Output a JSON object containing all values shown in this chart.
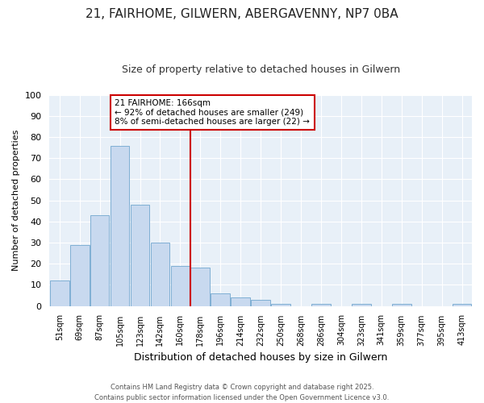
{
  "title_line1": "21, FAIRHOME, GILWERN, ABERGAVENNY, NP7 0BA",
  "title_line2": "Size of property relative to detached houses in Gilwern",
  "xlabel": "Distribution of detached houses by size in Gilwern",
  "ylabel": "Number of detached properties",
  "bar_values": [
    12,
    29,
    43,
    76,
    48,
    30,
    19,
    18,
    6,
    4,
    3,
    1,
    0,
    1,
    0,
    1,
    0,
    1,
    0,
    0,
    1
  ],
  "categories": [
    "51sqm",
    "69sqm",
    "87sqm",
    "105sqm",
    "123sqm",
    "142sqm",
    "160sqm",
    "178sqm",
    "196sqm",
    "214sqm",
    "232sqm",
    "250sqm",
    "268sqm",
    "286sqm",
    "304sqm",
    "323sqm",
    "341sqm",
    "359sqm",
    "377sqm",
    "395sqm",
    "413sqm"
  ],
  "bar_color": "#c8d9ef",
  "bar_edge_color": "#7fafd4",
  "bg_color": "#e8f0f8",
  "grid_color": "#ffffff",
  "vline_x": 6.5,
  "vline_color": "#cc0000",
  "ylim": [
    0,
    100
  ],
  "yticks": [
    0,
    10,
    20,
    30,
    40,
    50,
    60,
    70,
    80,
    90,
    100
  ],
  "annotation_title": "21 FAIRHOME: 166sqm",
  "annotation_line1": "← 92% of detached houses are smaller (249)",
  "annotation_line2": "8% of semi-detached houses are larger (22) →",
  "annotation_box_color": "#ffffff",
  "annotation_border_color": "#cc0000",
  "footer_line1": "Contains HM Land Registry data © Crown copyright and database right 2025.",
  "footer_line2": "Contains public sector information licensed under the Open Government Licence v3.0.",
  "fig_width": 6.0,
  "fig_height": 5.0,
  "fig_dpi": 100
}
